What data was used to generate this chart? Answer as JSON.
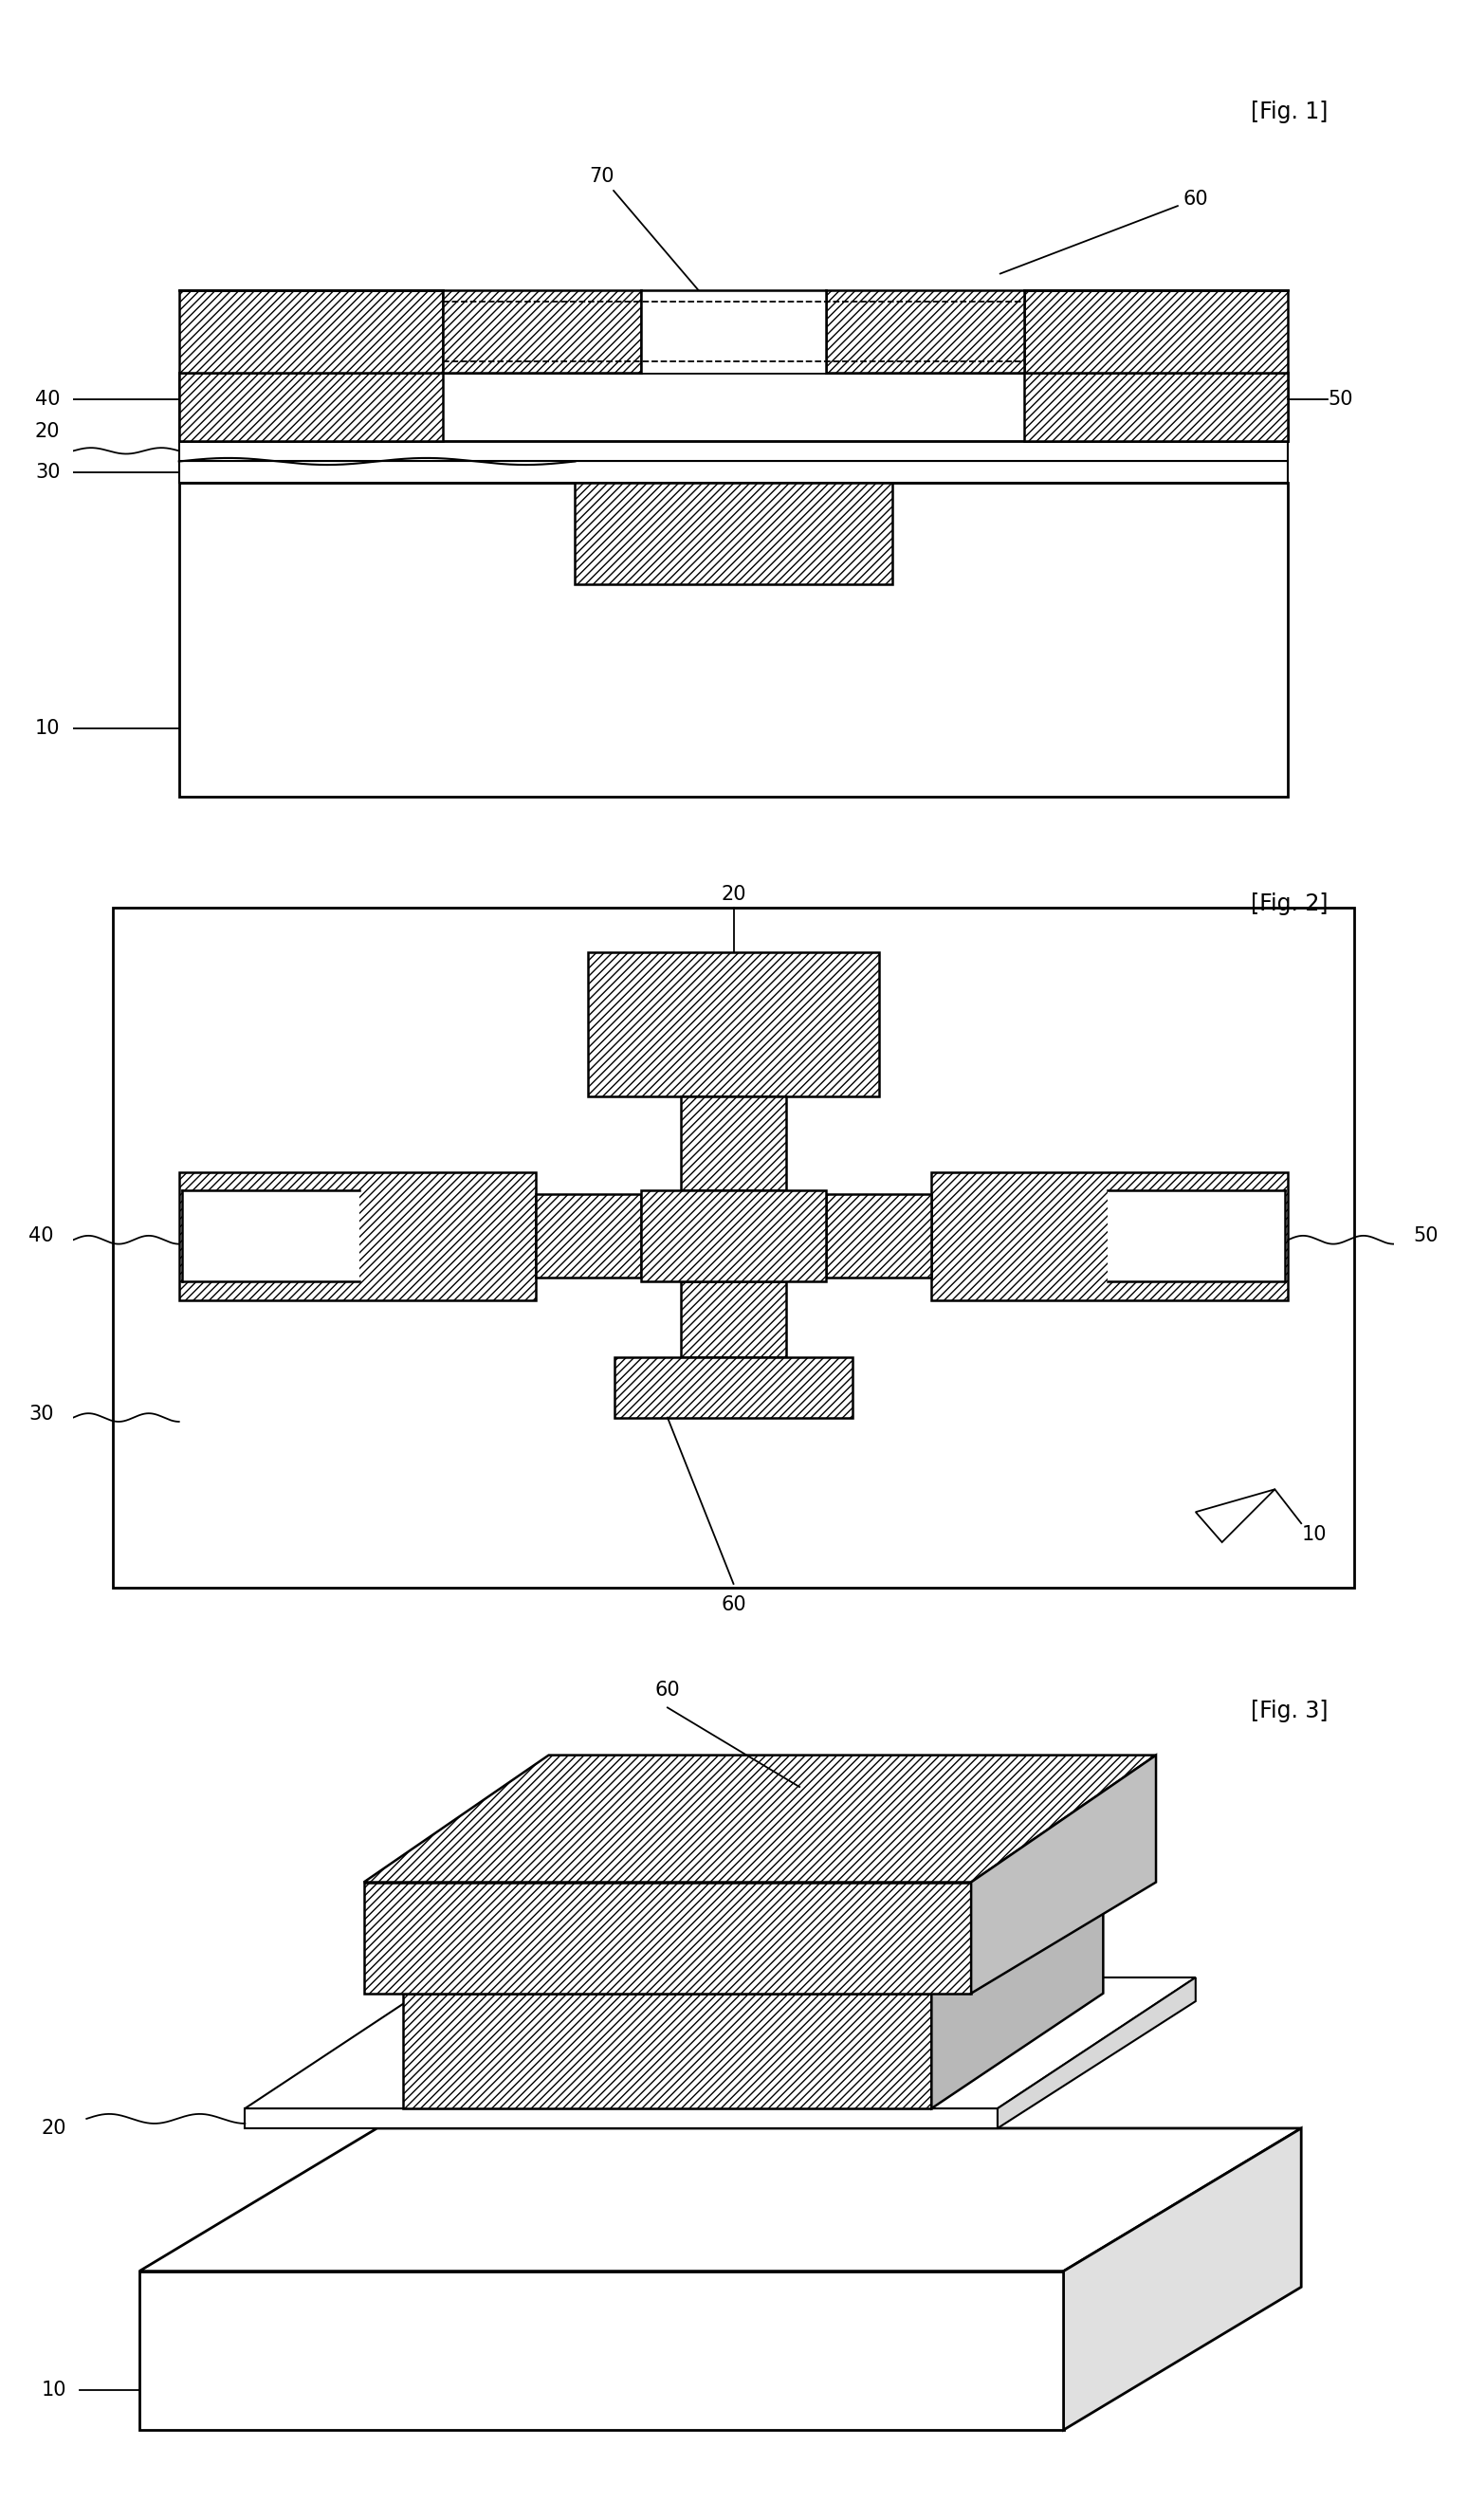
{
  "fig_title_1": "[Fig. 1]",
  "fig_title_2": "[Fig. 2]",
  "fig_title_3": "[Fig. 3]",
  "background": "#ffffff"
}
